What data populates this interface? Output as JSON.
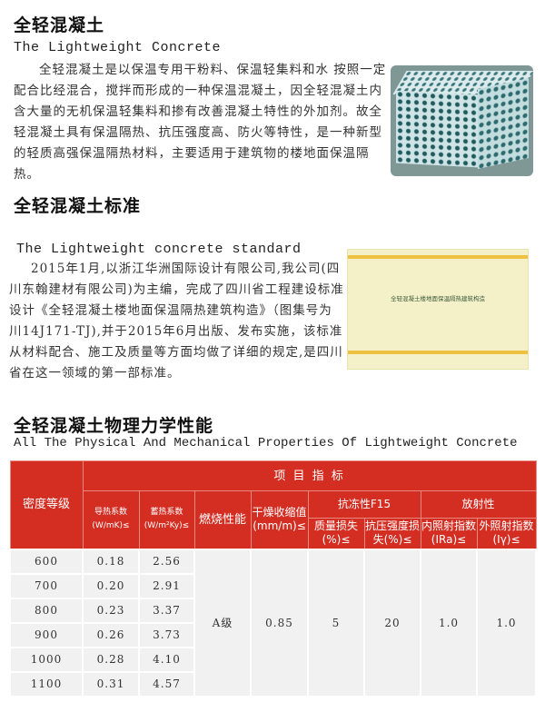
{
  "section1": {
    "title": "全轻混凝土",
    "subtitle": "The Lightweight Concrete",
    "body": "全轻混凝土是以保温专用干粉料、保温轻集料和水 按照一定配合比经混合，搅拌而形成的一种保温混凝土，因全轻混凝土内含大量的无机保温轻集料和掺有改善混凝土特性的外加剂。故全轻混凝土具有保温隔热、抗压强度高、防火等特性，是一种新型的轻质高强保温隔热材料，主要适用于建筑物的楼地面保温隔热。"
  },
  "section2": {
    "title": "全轻混凝土标准",
    "subtitle": "The Lightweight concrete standard",
    "body": "2015年1月,以浙江华洲国际设计有限公司,我公司(四川东翰建材有限公司)为主编，完成了四川省工程建设标准设计《全轻混凝土楼地面保温隔热建筑构造》（图集号为川14J171-TJ),并于2015年6月出版、发布实施，该标准从材料配合、施工及质量等方面均做了详细的规定,是四川省在这一领域的第一部标准。",
    "cover_title": "全轻混凝土楼地面保温隔热建筑构造"
  },
  "section3": {
    "title": "全轻混凝土物理力学性能",
    "subtitle": "All The Physical And Mechanical Properties Of Lightweight Concrete"
  },
  "table": {
    "header_color": "#d42e23",
    "group": "项 目 指 标",
    "density": "密度等级",
    "conductivity": "导热系数(W/mK)≤",
    "storage": "蓄热系数(W/m²Ky)≤",
    "combustion": "燃烧性能",
    "shrinkage": "干燥收缩值(mm/m)≤",
    "frost": "抗冻性F15",
    "mass_loss": "质量损失(%)≤",
    "strength_loss": "抗压强度损失(%)≤",
    "radiation": "放射性",
    "internal": "内照射指数(IRa)≤",
    "external": "外照射指数(Iγ)≤",
    "rows": [
      [
        "600",
        "0.18",
        "2.56"
      ],
      [
        "700",
        "0.20",
        "2.91"
      ],
      [
        "800",
        "0.23",
        "3.37"
      ],
      [
        "900",
        "0.26",
        "3.73"
      ],
      [
        "1000",
        "0.28",
        "4.10"
      ],
      [
        "1100",
        "0.31",
        "4.57"
      ]
    ],
    "shared": {
      "combustion": "A级",
      "shrinkage": "0.85",
      "mass_loss": "5",
      "strength_loss": "20",
      "internal": "1.0",
      "external": "1.0"
    }
  }
}
